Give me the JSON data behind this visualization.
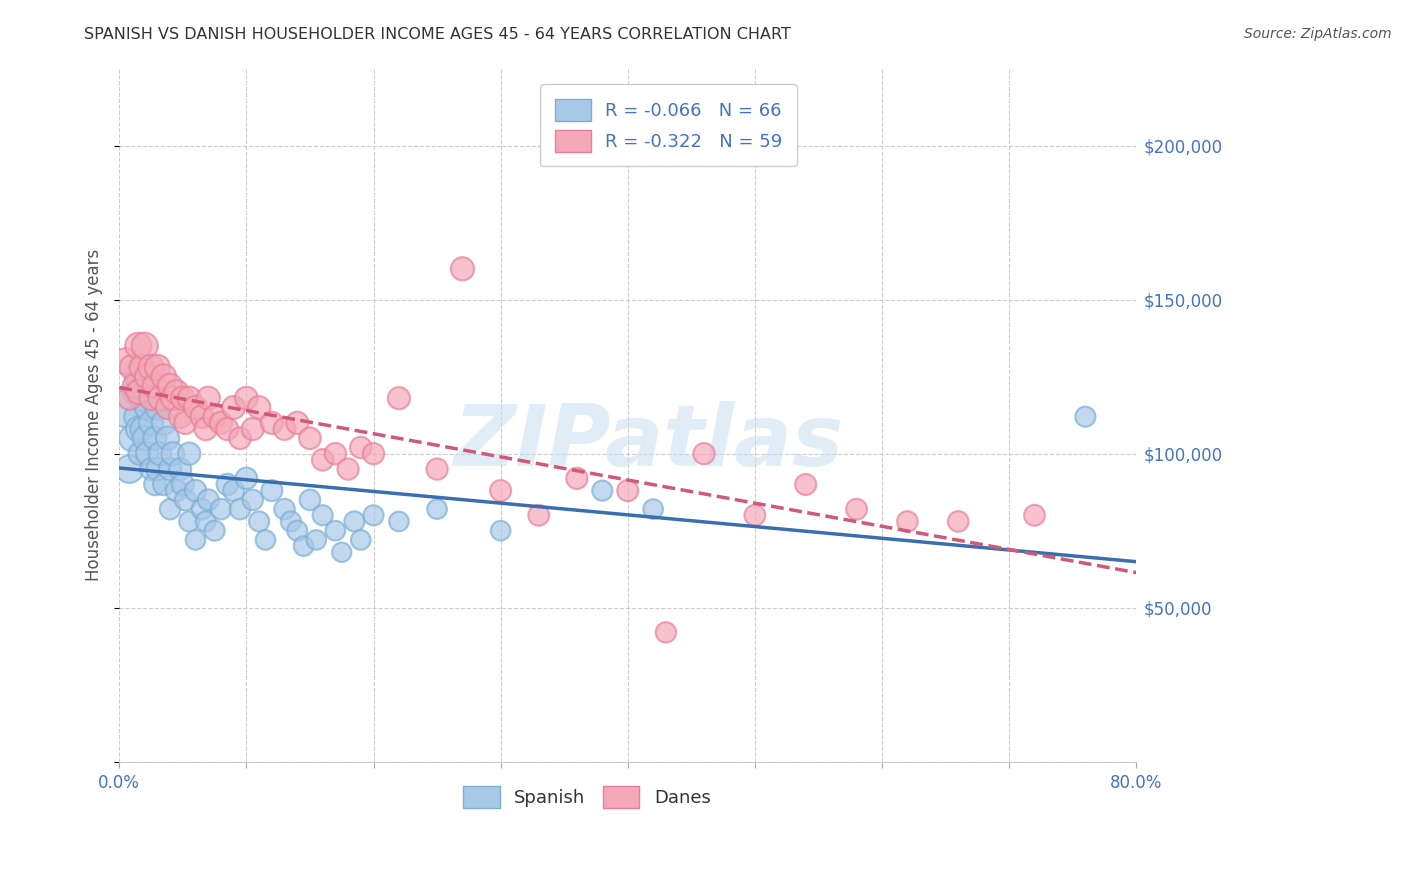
{
  "title": "SPANISH VS DANISH HOUSEHOLDER INCOME AGES 45 - 64 YEARS CORRELATION CHART",
  "source": "Source: ZipAtlas.com",
  "ylabel": "Householder Income Ages 45 - 64 years",
  "watermark": "ZIPatlas",
  "xlim": [
    0.0,
    0.8
  ],
  "ylim": [
    0,
    225000
  ],
  "yticks": [
    0,
    50000,
    100000,
    150000,
    200000
  ],
  "ytick_labels": [
    "",
    "$50,000",
    "$100,000",
    "$150,000",
    "$200,000"
  ],
  "xticks": [
    0.0,
    0.1,
    0.2,
    0.3,
    0.4,
    0.5,
    0.6,
    0.7,
    0.8
  ],
  "xtick_labels": [
    "0.0%",
    "",
    "",
    "",
    "",
    "",
    "",
    "",
    "80.0%"
  ],
  "legend_blue_label": "R = -0.066   N = 66",
  "legend_pink_label": "R = -0.322   N = 59",
  "legend_bottom_spanish": "Spanish",
  "legend_bottom_danes": "Danes",
  "blue_color": "#a8c8e8",
  "pink_color": "#f4a8b8",
  "blue_edge_color": "#7bafd4",
  "pink_edge_color": "#e88098",
  "blue_line_color": "#3a6faf",
  "pink_line_color": "#d05878",
  "tick_color": "#4472c4",
  "spanish_x": [
    0.005,
    0.008,
    0.01,
    0.012,
    0.013,
    0.015,
    0.015,
    0.016,
    0.018,
    0.018,
    0.02,
    0.02,
    0.022,
    0.022,
    0.025,
    0.025,
    0.028,
    0.028,
    0.03,
    0.03,
    0.032,
    0.035,
    0.035,
    0.038,
    0.04,
    0.04,
    0.042,
    0.045,
    0.048,
    0.05,
    0.052,
    0.055,
    0.055,
    0.06,
    0.06,
    0.065,
    0.068,
    0.07,
    0.075,
    0.08,
    0.085,
    0.09,
    0.095,
    0.1,
    0.105,
    0.11,
    0.115,
    0.12,
    0.13,
    0.135,
    0.14,
    0.145,
    0.15,
    0.155,
    0.16,
    0.17,
    0.175,
    0.185,
    0.19,
    0.2,
    0.22,
    0.25,
    0.3,
    0.38,
    0.42,
    0.76
  ],
  "spanish_y": [
    115000,
    95000,
    105000,
    120000,
    112000,
    125000,
    108000,
    100000,
    118000,
    108000,
    122000,
    105000,
    115000,
    100000,
    110000,
    95000,
    105000,
    90000,
    115000,
    95000,
    100000,
    110000,
    90000,
    105000,
    95000,
    82000,
    100000,
    88000,
    95000,
    90000,
    85000,
    100000,
    78000,
    88000,
    72000,
    82000,
    78000,
    85000,
    75000,
    82000,
    90000,
    88000,
    82000,
    92000,
    85000,
    78000,
    72000,
    88000,
    82000,
    78000,
    75000,
    70000,
    85000,
    72000,
    80000,
    75000,
    68000,
    78000,
    72000,
    80000,
    78000,
    82000,
    75000,
    88000,
    82000,
    112000
  ],
  "spanish_size": [
    800,
    400,
    350,
    300,
    280,
    380,
    320,
    260,
    340,
    290,
    360,
    300,
    320,
    270,
    300,
    250,
    280,
    240,
    310,
    260,
    270,
    300,
    240,
    280,
    260,
    220,
    270,
    240,
    250,
    260,
    230,
    260,
    210,
    240,
    200,
    220,
    210,
    230,
    210,
    220,
    240,
    230,
    220,
    240,
    220,
    210,
    200,
    230,
    220,
    210,
    210,
    200,
    220,
    200,
    210,
    200,
    195,
    210,
    200,
    210,
    200,
    200,
    200,
    210,
    200,
    210
  ],
  "danish_x": [
    0.005,
    0.008,
    0.01,
    0.012,
    0.015,
    0.015,
    0.018,
    0.02,
    0.022,
    0.025,
    0.025,
    0.028,
    0.03,
    0.032,
    0.035,
    0.038,
    0.04,
    0.042,
    0.045,
    0.048,
    0.05,
    0.052,
    0.055,
    0.06,
    0.065,
    0.068,
    0.07,
    0.075,
    0.08,
    0.085,
    0.09,
    0.095,
    0.1,
    0.105,
    0.11,
    0.12,
    0.13,
    0.14,
    0.15,
    0.16,
    0.17,
    0.18,
    0.19,
    0.2,
    0.22,
    0.25,
    0.27,
    0.3,
    0.33,
    0.36,
    0.4,
    0.43,
    0.46,
    0.5,
    0.54,
    0.58,
    0.62,
    0.66,
    0.72
  ],
  "danish_y": [
    130000,
    118000,
    128000,
    122000,
    135000,
    120000,
    128000,
    135000,
    125000,
    128000,
    118000,
    122000,
    128000,
    118000,
    125000,
    115000,
    122000,
    118000,
    120000,
    112000,
    118000,
    110000,
    118000,
    115000,
    112000,
    108000,
    118000,
    112000,
    110000,
    108000,
    115000,
    105000,
    118000,
    108000,
    115000,
    110000,
    108000,
    110000,
    105000,
    98000,
    100000,
    95000,
    102000,
    100000,
    118000,
    95000,
    160000,
    88000,
    80000,
    92000,
    88000,
    42000,
    100000,
    80000,
    90000,
    82000,
    78000,
    78000,
    80000
  ],
  "danish_size": [
    350,
    280,
    320,
    290,
    360,
    300,
    330,
    360,
    310,
    330,
    290,
    310,
    330,
    290,
    320,
    280,
    310,
    290,
    300,
    270,
    290,
    260,
    280,
    280,
    270,
    260,
    280,
    265,
    260,
    255,
    275,
    245,
    270,
    255,
    265,
    255,
    250,
    255,
    245,
    240,
    240,
    235,
    240,
    235,
    255,
    235,
    280,
    230,
    225,
    235,
    230,
    215,
    235,
    225,
    230,
    225,
    220,
    220,
    225
  ]
}
